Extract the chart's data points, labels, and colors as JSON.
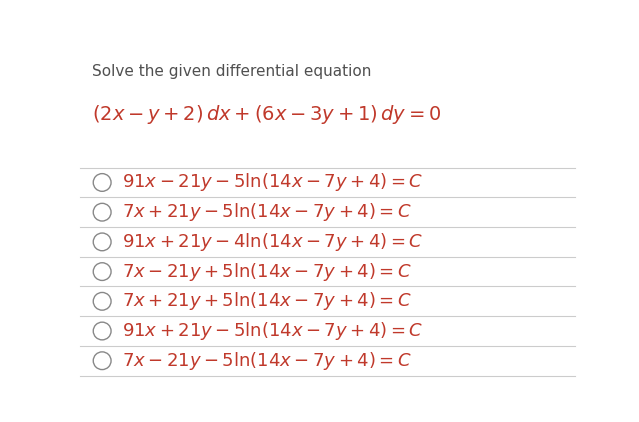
{
  "title_text": "Solve the given differential equation",
  "equation": "$(2x - y + 2)\\,dx + (6x - 3y + 1)\\,dy = 0$",
  "options": [
    "$91x - 21y - 5\\ln(14x - 7y + 4) = C$",
    "$7x + 21y - 5\\ln(14x - 7y + 4) = C$",
    "$91x + 21y - 4\\ln(14x - 7y + 4) = C$",
    "$7x - 21y + 5\\ln(14x - 7y + 4) = C$",
    "$7x + 21y + 5\\ln(14x - 7y + 4) = C$",
    "$91x + 21y - 5\\ln(14x - 7y + 4) = C$",
    "$7x - 21y - 5\\ln(14x - 7y + 4) = C$"
  ],
  "bg_color": "#ffffff",
  "title_color": "#505050",
  "equation_color": "#c0392b",
  "option_color": "#c0392b",
  "separator_color": "#cccccc",
  "circle_color": "#888888",
  "title_fontsize": 11,
  "equation_fontsize": 14,
  "option_fontsize": 13,
  "fig_width": 6.39,
  "fig_height": 4.22
}
